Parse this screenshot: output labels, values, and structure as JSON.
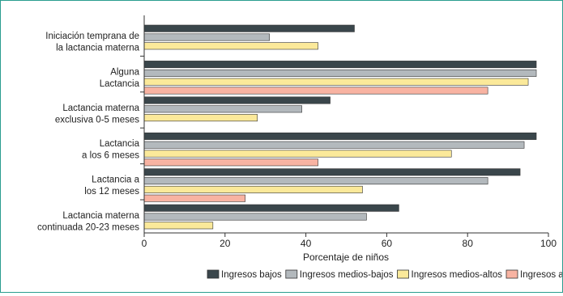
{
  "chart_data": {
    "type": "bar",
    "orientation": "horizontal",
    "categories": [
      [
        "Iniciación temprana de",
        "la lactancia materna"
      ],
      [
        "Alguna",
        "Lactancia"
      ],
      [
        "Lactancia materna",
        "exclusiva 0-5 meses"
      ],
      [
        "Lactancia",
        "a los 6 meses"
      ],
      [
        "Lactancia a",
        "los 12 meses"
      ],
      [
        "Lactancia materna",
        "continuada 20-23 meses"
      ]
    ],
    "series": [
      {
        "name": "Ingresos bajos",
        "color": "#3a464b",
        "values": [
          52,
          97,
          46,
          97,
          93,
          63
        ]
      },
      {
        "name": "Ingresos medios-bajos",
        "color": "#b3b9bd",
        "values": [
          31,
          97,
          39,
          94,
          85,
          55
        ]
      },
      {
        "name": "Ingresos medios-altos",
        "color": "#fbe99a",
        "values": [
          43,
          95,
          28,
          76,
          54,
          17
        ]
      },
      {
        "name": "Ingresos altos",
        "color": "#f8b3a2",
        "values": [
          null,
          85,
          null,
          43,
          25,
          null
        ]
      }
    ],
    "xlim": [
      0,
      100
    ],
    "xticks": [
      0,
      20,
      40,
      60,
      80,
      100
    ],
    "xlabel": "Porcentaje de niños",
    "legend_position": "bottom",
    "grid": false
  }
}
